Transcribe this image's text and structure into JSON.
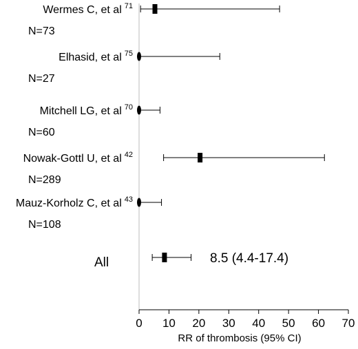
{
  "chart_data": {
    "type": "forest",
    "xlabel": "RR of thrombosis (95% CI)",
    "xlim": [
      0,
      70
    ],
    "xticks": [
      0,
      10,
      20,
      30,
      40,
      50,
      60,
      70
    ],
    "studies": [
      {
        "name": "Wermes C, et al",
        "ref": "71",
        "n_label": "N=73",
        "estimate": 5.3,
        "ci": [
          0.5,
          47.0
        ],
        "marker": "square"
      },
      {
        "name": "Elhasid, et al",
        "ref": "75",
        "n_label": "N=27",
        "estimate": 0.0,
        "ci": [
          0.0,
          27.0
        ],
        "marker": "ellipse"
      },
      {
        "name": "Mitchell LG, et al",
        "ref": "70",
        "n_label": "N=60",
        "estimate": 0.0,
        "ci": [
          0.0,
          7.0
        ],
        "marker": "ellipse"
      },
      {
        "name": "Nowak-Gottl U, et al",
        "ref": "42",
        "n_label": "N=289",
        "estimate": 20.4,
        "ci": [
          8.2,
          62.0
        ],
        "marker": "square"
      },
      {
        "name": "Mauz-Korholz C, et al",
        "ref": "43",
        "n_label": "N=108",
        "estimate": 0.0,
        "ci": [
          0.0,
          7.5
        ],
        "marker": "ellipse"
      }
    ],
    "summary": {
      "name": "All",
      "estimate": 8.5,
      "ci": [
        4.4,
        17.4
      ],
      "label": "8.5 (4.4-17.4)",
      "marker": "square"
    },
    "reference_line": 0
  }
}
